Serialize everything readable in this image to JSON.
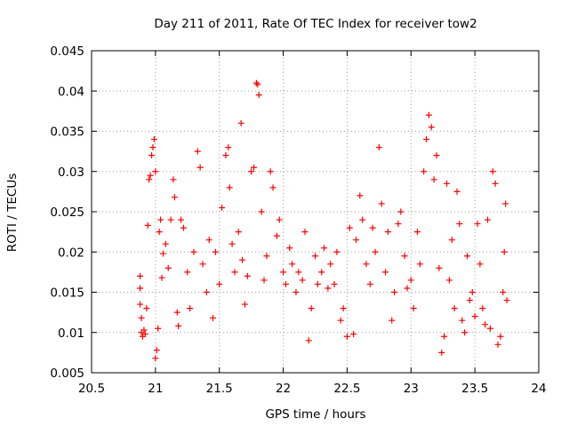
{
  "chart_data": {
    "type": "scatter",
    "title": "Day 211 of 2011, Rate Of TEC Index for receiver tow2",
    "xlabel": "GPS time / hours",
    "ylabel": "ROTI / TECUs",
    "xlim": [
      20.5,
      24
    ],
    "ylim": [
      0.005,
      0.045
    ],
    "xticks": [
      20.5,
      21,
      21.5,
      22,
      22.5,
      23,
      23.5,
      24
    ],
    "xtick_labels": [
      "20.5",
      "21",
      "21.5",
      "22",
      "22.5",
      "23",
      "23.5",
      "24"
    ],
    "yticks": [
      0.005,
      0.01,
      0.015,
      0.02,
      0.025,
      0.03,
      0.035,
      0.04,
      0.045
    ],
    "ytick_labels": [
      "0.005",
      "0.01",
      "0.015",
      "0.02",
      "0.025",
      "0.03",
      "0.035",
      "0.04",
      "0.045"
    ],
    "grid": true,
    "marker": "+",
    "color": "#ff0000",
    "series": [
      {
        "name": "ROTI",
        "points": [
          [
            20.88,
            0.017
          ],
          [
            20.88,
            0.0155
          ],
          [
            20.88,
            0.0135
          ],
          [
            20.89,
            0.0118
          ],
          [
            20.89,
            0.01
          ],
          [
            20.9,
            0.0095
          ],
          [
            20.91,
            0.0103
          ],
          [
            20.92,
            0.0098
          ],
          [
            20.93,
            0.013
          ],
          [
            20.94,
            0.0233
          ],
          [
            20.95,
            0.029
          ],
          [
            20.96,
            0.0295
          ],
          [
            20.97,
            0.032
          ],
          [
            20.98,
            0.033
          ],
          [
            20.99,
            0.034
          ],
          [
            21.0,
            0.03
          ],
          [
            21.0,
            0.0068
          ],
          [
            21.01,
            0.0078
          ],
          [
            21.02,
            0.0105
          ],
          [
            21.03,
            0.0225
          ],
          [
            21.04,
            0.024
          ],
          [
            21.05,
            0.0168
          ],
          [
            21.06,
            0.0198
          ],
          [
            21.08,
            0.021
          ],
          [
            21.1,
            0.018
          ],
          [
            21.12,
            0.024
          ],
          [
            21.14,
            0.029
          ],
          [
            21.15,
            0.0268
          ],
          [
            21.17,
            0.0125
          ],
          [
            21.18,
            0.0108
          ],
          [
            21.2,
            0.024
          ],
          [
            21.22,
            0.023
          ],
          [
            21.25,
            0.0175
          ],
          [
            21.27,
            0.013
          ],
          [
            21.3,
            0.02
          ],
          [
            21.33,
            0.0325
          ],
          [
            21.35,
            0.0305
          ],
          [
            21.37,
            0.0185
          ],
          [
            21.4,
            0.015
          ],
          [
            21.42,
            0.0215
          ],
          [
            21.45,
            0.0118
          ],
          [
            21.47,
            0.02
          ],
          [
            21.5,
            0.016
          ],
          [
            21.52,
            0.0255
          ],
          [
            21.55,
            0.032
          ],
          [
            21.57,
            0.033
          ],
          [
            21.58,
            0.028
          ],
          [
            21.6,
            0.021
          ],
          [
            21.62,
            0.0175
          ],
          [
            21.65,
            0.0225
          ],
          [
            21.67,
            0.036
          ],
          [
            21.68,
            0.019
          ],
          [
            21.7,
            0.0135
          ],
          [
            21.72,
            0.017
          ],
          [
            21.75,
            0.03
          ],
          [
            21.77,
            0.0305
          ],
          [
            21.79,
            0.041
          ],
          [
            21.8,
            0.0408
          ],
          [
            21.81,
            0.0395
          ],
          [
            21.83,
            0.025
          ],
          [
            21.85,
            0.0165
          ],
          [
            21.87,
            0.0195
          ],
          [
            21.9,
            0.03
          ],
          [
            21.92,
            0.028
          ],
          [
            21.95,
            0.022
          ],
          [
            21.97,
            0.024
          ],
          [
            22.0,
            0.0175
          ],
          [
            22.02,
            0.016
          ],
          [
            22.05,
            0.0205
          ],
          [
            22.07,
            0.0185
          ],
          [
            22.1,
            0.015
          ],
          [
            22.12,
            0.0175
          ],
          [
            22.15,
            0.0165
          ],
          [
            22.17,
            0.0225
          ],
          [
            22.2,
            0.009
          ],
          [
            22.22,
            0.013
          ],
          [
            22.25,
            0.0195
          ],
          [
            22.27,
            0.016
          ],
          [
            22.3,
            0.0175
          ],
          [
            22.32,
            0.0205
          ],
          [
            22.35,
            0.0155
          ],
          [
            22.37,
            0.0185
          ],
          [
            22.4,
            0.016
          ],
          [
            22.42,
            0.02
          ],
          [
            22.45,
            0.0115
          ],
          [
            22.47,
            0.013
          ],
          [
            22.5,
            0.0095
          ],
          [
            22.52,
            0.023
          ],
          [
            22.55,
            0.0098
          ],
          [
            22.57,
            0.0215
          ],
          [
            22.6,
            0.027
          ],
          [
            22.62,
            0.024
          ],
          [
            22.65,
            0.0185
          ],
          [
            22.68,
            0.016
          ],
          [
            22.7,
            0.023
          ],
          [
            22.72,
            0.02
          ],
          [
            22.75,
            0.033
          ],
          [
            22.77,
            0.026
          ],
          [
            22.8,
            0.0175
          ],
          [
            22.82,
            0.0225
          ],
          [
            22.85,
            0.0115
          ],
          [
            22.87,
            0.015
          ],
          [
            22.9,
            0.0235
          ],
          [
            22.92,
            0.025
          ],
          [
            22.95,
            0.0195
          ],
          [
            22.97,
            0.0155
          ],
          [
            23.0,
            0.0165
          ],
          [
            23.02,
            0.013
          ],
          [
            23.05,
            0.0225
          ],
          [
            23.07,
            0.0185
          ],
          [
            23.1,
            0.03
          ],
          [
            23.12,
            0.034
          ],
          [
            23.14,
            0.037
          ],
          [
            23.16,
            0.0355
          ],
          [
            23.18,
            0.029
          ],
          [
            23.2,
            0.032
          ],
          [
            23.22,
            0.018
          ],
          [
            23.24,
            0.0075
          ],
          [
            23.26,
            0.0095
          ],
          [
            23.28,
            0.0285
          ],
          [
            23.3,
            0.0165
          ],
          [
            23.32,
            0.0215
          ],
          [
            23.34,
            0.013
          ],
          [
            23.36,
            0.0275
          ],
          [
            23.38,
            0.0235
          ],
          [
            23.4,
            0.0115
          ],
          [
            23.42,
            0.01
          ],
          [
            23.44,
            0.0195
          ],
          [
            23.46,
            0.014
          ],
          [
            23.48,
            0.015
          ],
          [
            23.5,
            0.012
          ],
          [
            23.52,
            0.0235
          ],
          [
            23.54,
            0.0185
          ],
          [
            23.56,
            0.013
          ],
          [
            23.58,
            0.011
          ],
          [
            23.6,
            0.024
          ],
          [
            23.62,
            0.0105
          ],
          [
            23.64,
            0.03
          ],
          [
            23.66,
            0.0285
          ],
          [
            23.68,
            0.0085
          ],
          [
            23.7,
            0.0095
          ],
          [
            23.72,
            0.015
          ],
          [
            23.73,
            0.02
          ],
          [
            23.74,
            0.026
          ],
          [
            23.75,
            0.014
          ]
        ]
      }
    ]
  }
}
